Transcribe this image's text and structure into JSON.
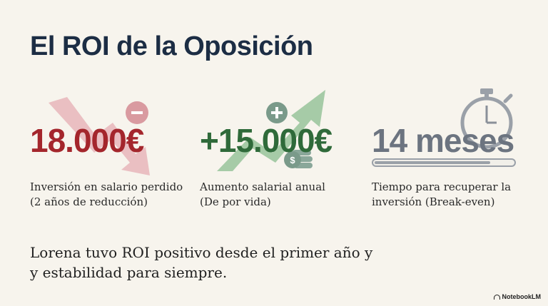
{
  "title": "El ROI de la Oposición",
  "stats": [
    {
      "value": "18.000€",
      "description_lines": [
        "Inversión en salario perdido",
        "(2 años de reducción)"
      ],
      "icon": "trend-down-minus-icon",
      "color": "#a4262c"
    },
    {
      "value": "+15.000€",
      "description_lines": [
        "Aumento salarial anual",
        "(De por vida)"
      ],
      "icon": "trend-up-plus-coins-icon",
      "color": "#2f6a3a"
    },
    {
      "value": "14 meses",
      "description_lines": [
        "Tiempo para recuperar la",
        "inversión (Break-even)"
      ],
      "icon": "stopwatch-icon",
      "color": "#6c7480",
      "progress": 0.84
    }
  ],
  "summary_lines": [
    "Lorena tuvo ROI positivo desde el primer año y",
    "y estabilidad para siempre."
  ],
  "brand": "NotebookLM"
}
